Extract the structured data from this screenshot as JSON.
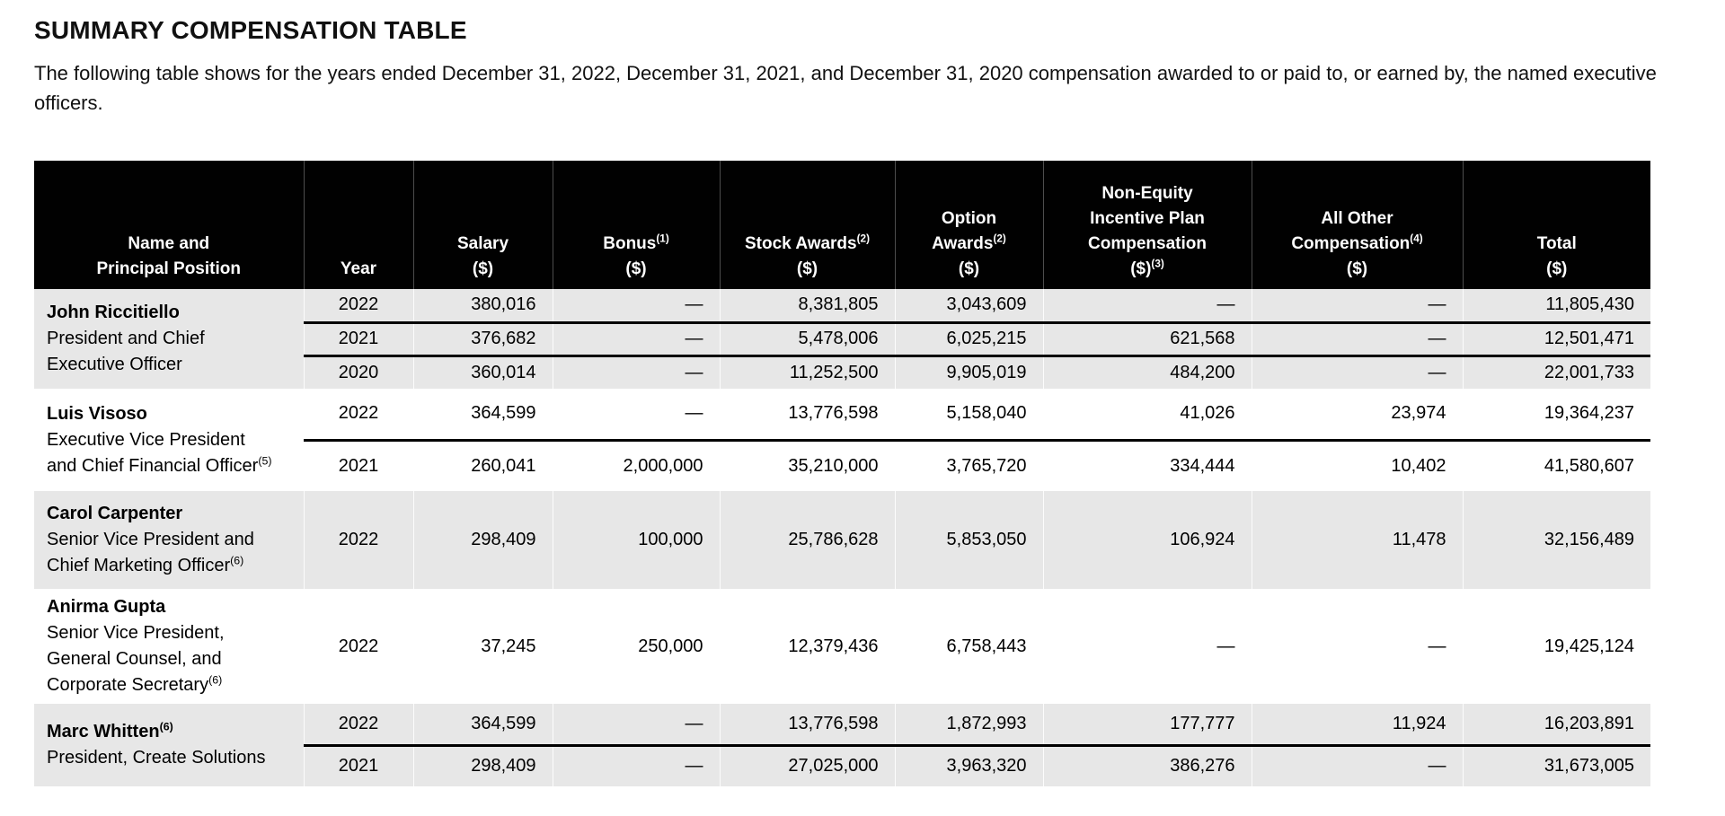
{
  "page": {
    "title": "SUMMARY COMPENSATION TABLE",
    "intro": "The following table shows for the years ended December 31, 2022, December 31, 2021, and December 31, 2020 compensation awarded to or paid to, or earned by, the named executive officers."
  },
  "colors": {
    "header_bg": "#010101",
    "header_text": "#ffffff",
    "row_stripe": "#e7e7e7",
    "rule": "#000000"
  },
  "table": {
    "columns": [
      {
        "id": "name",
        "lines": [
          [
            {
              "t": "Name and"
            }
          ],
          [
            {
              "t": "Principal Position"
            }
          ]
        ]
      },
      {
        "id": "year",
        "lines": [
          [
            {
              "t": "Year"
            }
          ]
        ]
      },
      {
        "id": "salary",
        "lines": [
          [
            {
              "t": "Salary"
            }
          ],
          [
            {
              "t": "($)"
            }
          ]
        ]
      },
      {
        "id": "bonus",
        "lines": [
          [
            {
              "t": "Bonus"
            },
            {
              "t": "(1)",
              "s": 1
            }
          ],
          [
            {
              "t": "($)"
            }
          ]
        ]
      },
      {
        "id": "stock",
        "lines": [
          [
            {
              "t": "Stock Awards"
            },
            {
              "t": "(2)",
              "s": 1
            }
          ],
          [
            {
              "t": "($)"
            }
          ]
        ]
      },
      {
        "id": "option",
        "lines": [
          [
            {
              "t": "Option"
            }
          ],
          [
            {
              "t": "Awards"
            },
            {
              "t": "(2)",
              "s": 1
            }
          ],
          [
            {
              "t": "($)"
            }
          ]
        ]
      },
      {
        "id": "non_equity",
        "lines": [
          [
            {
              "t": "Non-Equity"
            }
          ],
          [
            {
              "t": "Incentive Plan"
            }
          ],
          [
            {
              "t": "Compensation"
            }
          ],
          [
            {
              "t": "($)"
            },
            {
              "t": "(3)",
              "s": 1
            }
          ]
        ]
      },
      {
        "id": "all_other",
        "lines": [
          [
            {
              "t": "All Other"
            }
          ],
          [
            {
              "t": "Compensation"
            },
            {
              "t": "(4)",
              "s": 1
            }
          ],
          [
            {
              "t": "($)"
            }
          ]
        ]
      },
      {
        "id": "total",
        "lines": [
          [
            {
              "t": "Total"
            }
          ],
          [
            {
              "t": "($)"
            }
          ]
        ]
      }
    ],
    "groups": [
      {
        "name": [
          {
            "t": "John Riccitiello"
          }
        ],
        "position": [
          [
            {
              "t": "President and Chief"
            }
          ],
          [
            {
              "t": "Executive Officer"
            }
          ]
        ],
        "rows": [
          {
            "year": "2022",
            "salary": "380,016",
            "bonus": "—",
            "stock": "8,381,805",
            "option": "3,043,609",
            "non_equity": "—",
            "all_other": "—",
            "total": "11,805,430"
          },
          {
            "year": "2021",
            "salary": "376,682",
            "bonus": "—",
            "stock": "5,478,006",
            "option": "6,025,215",
            "non_equity": "621,568",
            "all_other": "—",
            "total": "12,501,471"
          },
          {
            "year": "2020",
            "salary": "360,014",
            "bonus": "—",
            "stock": "11,252,500",
            "option": "9,905,019",
            "non_equity": "484,200",
            "all_other": "—",
            "total": "22,001,733"
          }
        ]
      },
      {
        "name": [
          {
            "t": "Luis Visoso"
          }
        ],
        "position": [
          [
            {
              "t": "Executive Vice President"
            }
          ],
          [
            {
              "t": "and Chief Financial Officer"
            },
            {
              "t": "(5)",
              "s": 1
            }
          ]
        ],
        "rows": [
          {
            "year": "2022",
            "salary": "364,599",
            "bonus": "—",
            "stock": "13,776,598",
            "option": "5,158,040",
            "non_equity": "41,026",
            "all_other": "23,974",
            "total": "19,364,237"
          },
          {
            "year": "2021",
            "salary": "260,041",
            "bonus": "2,000,000",
            "stock": "35,210,000",
            "option": "3,765,720",
            "non_equity": "334,444",
            "all_other": "10,402",
            "total": "41,580,607"
          }
        ]
      },
      {
        "name": [
          {
            "t": "Carol Carpenter"
          }
        ],
        "position": [
          [
            {
              "t": "Senior Vice President and"
            }
          ],
          [
            {
              "t": "Chief Marketing Officer"
            },
            {
              "t": "(6)",
              "s": 1
            }
          ]
        ],
        "rows": [
          {
            "year": "2022",
            "salary": "298,409",
            "bonus": "100,000",
            "stock": "25,786,628",
            "option": "5,853,050",
            "non_equity": "106,924",
            "all_other": "11,478",
            "total": "32,156,489"
          }
        ]
      },
      {
        "name": [
          {
            "t": "Anirma Gupta"
          }
        ],
        "position": [
          [
            {
              "t": "Senior Vice President,"
            }
          ],
          [
            {
              "t": "General Counsel, and"
            }
          ],
          [
            {
              "t": "Corporate Secretary"
            },
            {
              "t": "(6)",
              "s": 1
            }
          ]
        ],
        "rows": [
          {
            "year": "2022",
            "salary": "37,245",
            "bonus": "250,000",
            "stock": "12,379,436",
            "option": "6,758,443",
            "non_equity": "—",
            "all_other": "—",
            "total": "19,425,124"
          }
        ]
      },
      {
        "name": [
          {
            "t": "Marc Whitten"
          },
          {
            "t": "(6)",
            "s": 1
          }
        ],
        "position": [
          [
            {
              "t": "President, Create Solutions"
            }
          ]
        ],
        "rows": [
          {
            "year": "2022",
            "salary": "364,599",
            "bonus": "—",
            "stock": "13,776,598",
            "option": "1,872,993",
            "non_equity": "177,777",
            "all_other": "11,924",
            "total": "16,203,891"
          },
          {
            "year": "2021",
            "salary": "298,409",
            "bonus": "—",
            "stock": "27,025,000",
            "option": "3,963,320",
            "non_equity": "386,276",
            "all_other": "—",
            "total": "31,673,005"
          }
        ]
      }
    ]
  }
}
